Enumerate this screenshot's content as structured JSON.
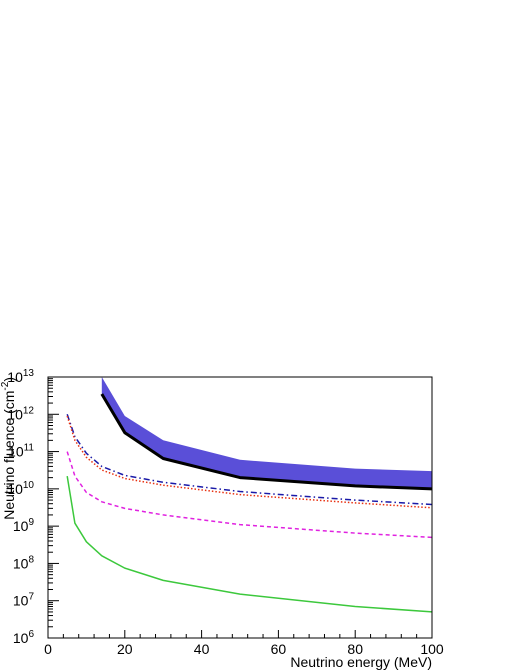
{
  "chart_data": {
    "type": "line",
    "title": "",
    "xlabel": "Neutrino energy (MeV)",
    "ylabel_main": "Neutrino fluence (cm",
    "ylabel_sup": "-2",
    "ylabel_tail": ")",
    "xlim": [
      0,
      100
    ],
    "ylim": [
      1000000.0,
      10000000000000.0
    ],
    "y_scale": "log",
    "grid": false,
    "legend": "none",
    "x_ticks": [
      0,
      20,
      40,
      60,
      80,
      100
    ],
    "y_ticks": [
      {
        "base": "10",
        "exp": "6",
        "value": 1000000.0
      },
      {
        "base": "10",
        "exp": "7",
        "value": 10000000.0
      },
      {
        "base": "10",
        "exp": "8",
        "value": 100000000.0
      },
      {
        "base": "10",
        "exp": "9",
        "value": 1000000000.0
      },
      {
        "base": "10",
        "exp": "10",
        "value": 10000000000.0
      },
      {
        "base": "10",
        "exp": "11",
        "value": 100000000000.0
      },
      {
        "base": "10",
        "exp": "12",
        "value": 1000000000000.0
      },
      {
        "base": "10",
        "exp": "13",
        "value": 10000000000000.0
      }
    ],
    "band": {
      "color": "#5a4fd8",
      "x": [
        14,
        20,
        30,
        50,
        80,
        100
      ],
      "upper": [
        10000000000000.0,
        900000000000.0,
        200000000000.0,
        60000000000.0,
        35000000000.0,
        30000000000.0
      ],
      "lower": [
        3500000000000.0,
        320000000000.0,
        65000000000.0,
        20000000000.0,
        12000000000.0,
        10000000000.0
      ]
    },
    "series": [
      {
        "color": "#000000",
        "dash": "",
        "width": 3,
        "x": [
          14,
          20,
          30,
          50,
          80,
          100
        ],
        "y": [
          3500000000000.0,
          320000000000.0,
          65000000000.0,
          20000000000.0,
          12000000000.0,
          10000000000.0
        ]
      },
      {
        "color": "#1a1aa8",
        "dash": "6,3,1.5,3",
        "width": 1.5,
        "x": [
          5,
          7,
          10,
          14,
          20,
          30,
          50,
          80,
          100
        ],
        "y": [
          1000000000000.0,
          250000000000.0,
          90000000000.0,
          40000000000.0,
          23000000000.0,
          15000000000.0,
          8500000000.0,
          5000000000.0,
          3800000000.0
        ]
      },
      {
        "color": "#e83010",
        "dash": "1.5,2",
        "width": 1.5,
        "x": [
          5,
          7,
          10,
          14,
          20,
          30,
          50,
          80,
          100
        ],
        "y": [
          900000000000.0,
          200000000000.0,
          70000000000.0,
          32000000000.0,
          19000000000.0,
          12500000000.0,
          7000000000.0,
          4200000000.0,
          3100000000.0
        ]
      },
      {
        "color": "#e022e0",
        "dash": "4,3",
        "width": 1.5,
        "x": [
          5,
          7,
          10,
          14,
          20,
          30,
          50,
          80,
          100
        ],
        "y": [
          100000000000.0,
          22000000000.0,
          8000000000.0,
          4500000000.0,
          3000000000.0,
          2000000000.0,
          1100000000.0,
          650000000.0,
          500000000.0
        ]
      },
      {
        "color": "#3cc83c",
        "dash": "",
        "width": 1.5,
        "x": [
          5,
          7,
          10,
          14,
          20,
          30,
          50,
          80,
          100
        ],
        "y": [
          22000000000.0,
          1200000000.0,
          380000000.0,
          160000000.0,
          75000000.0,
          35000000.0,
          15000000.0,
          7000000.0,
          5000000.0
        ]
      }
    ]
  }
}
